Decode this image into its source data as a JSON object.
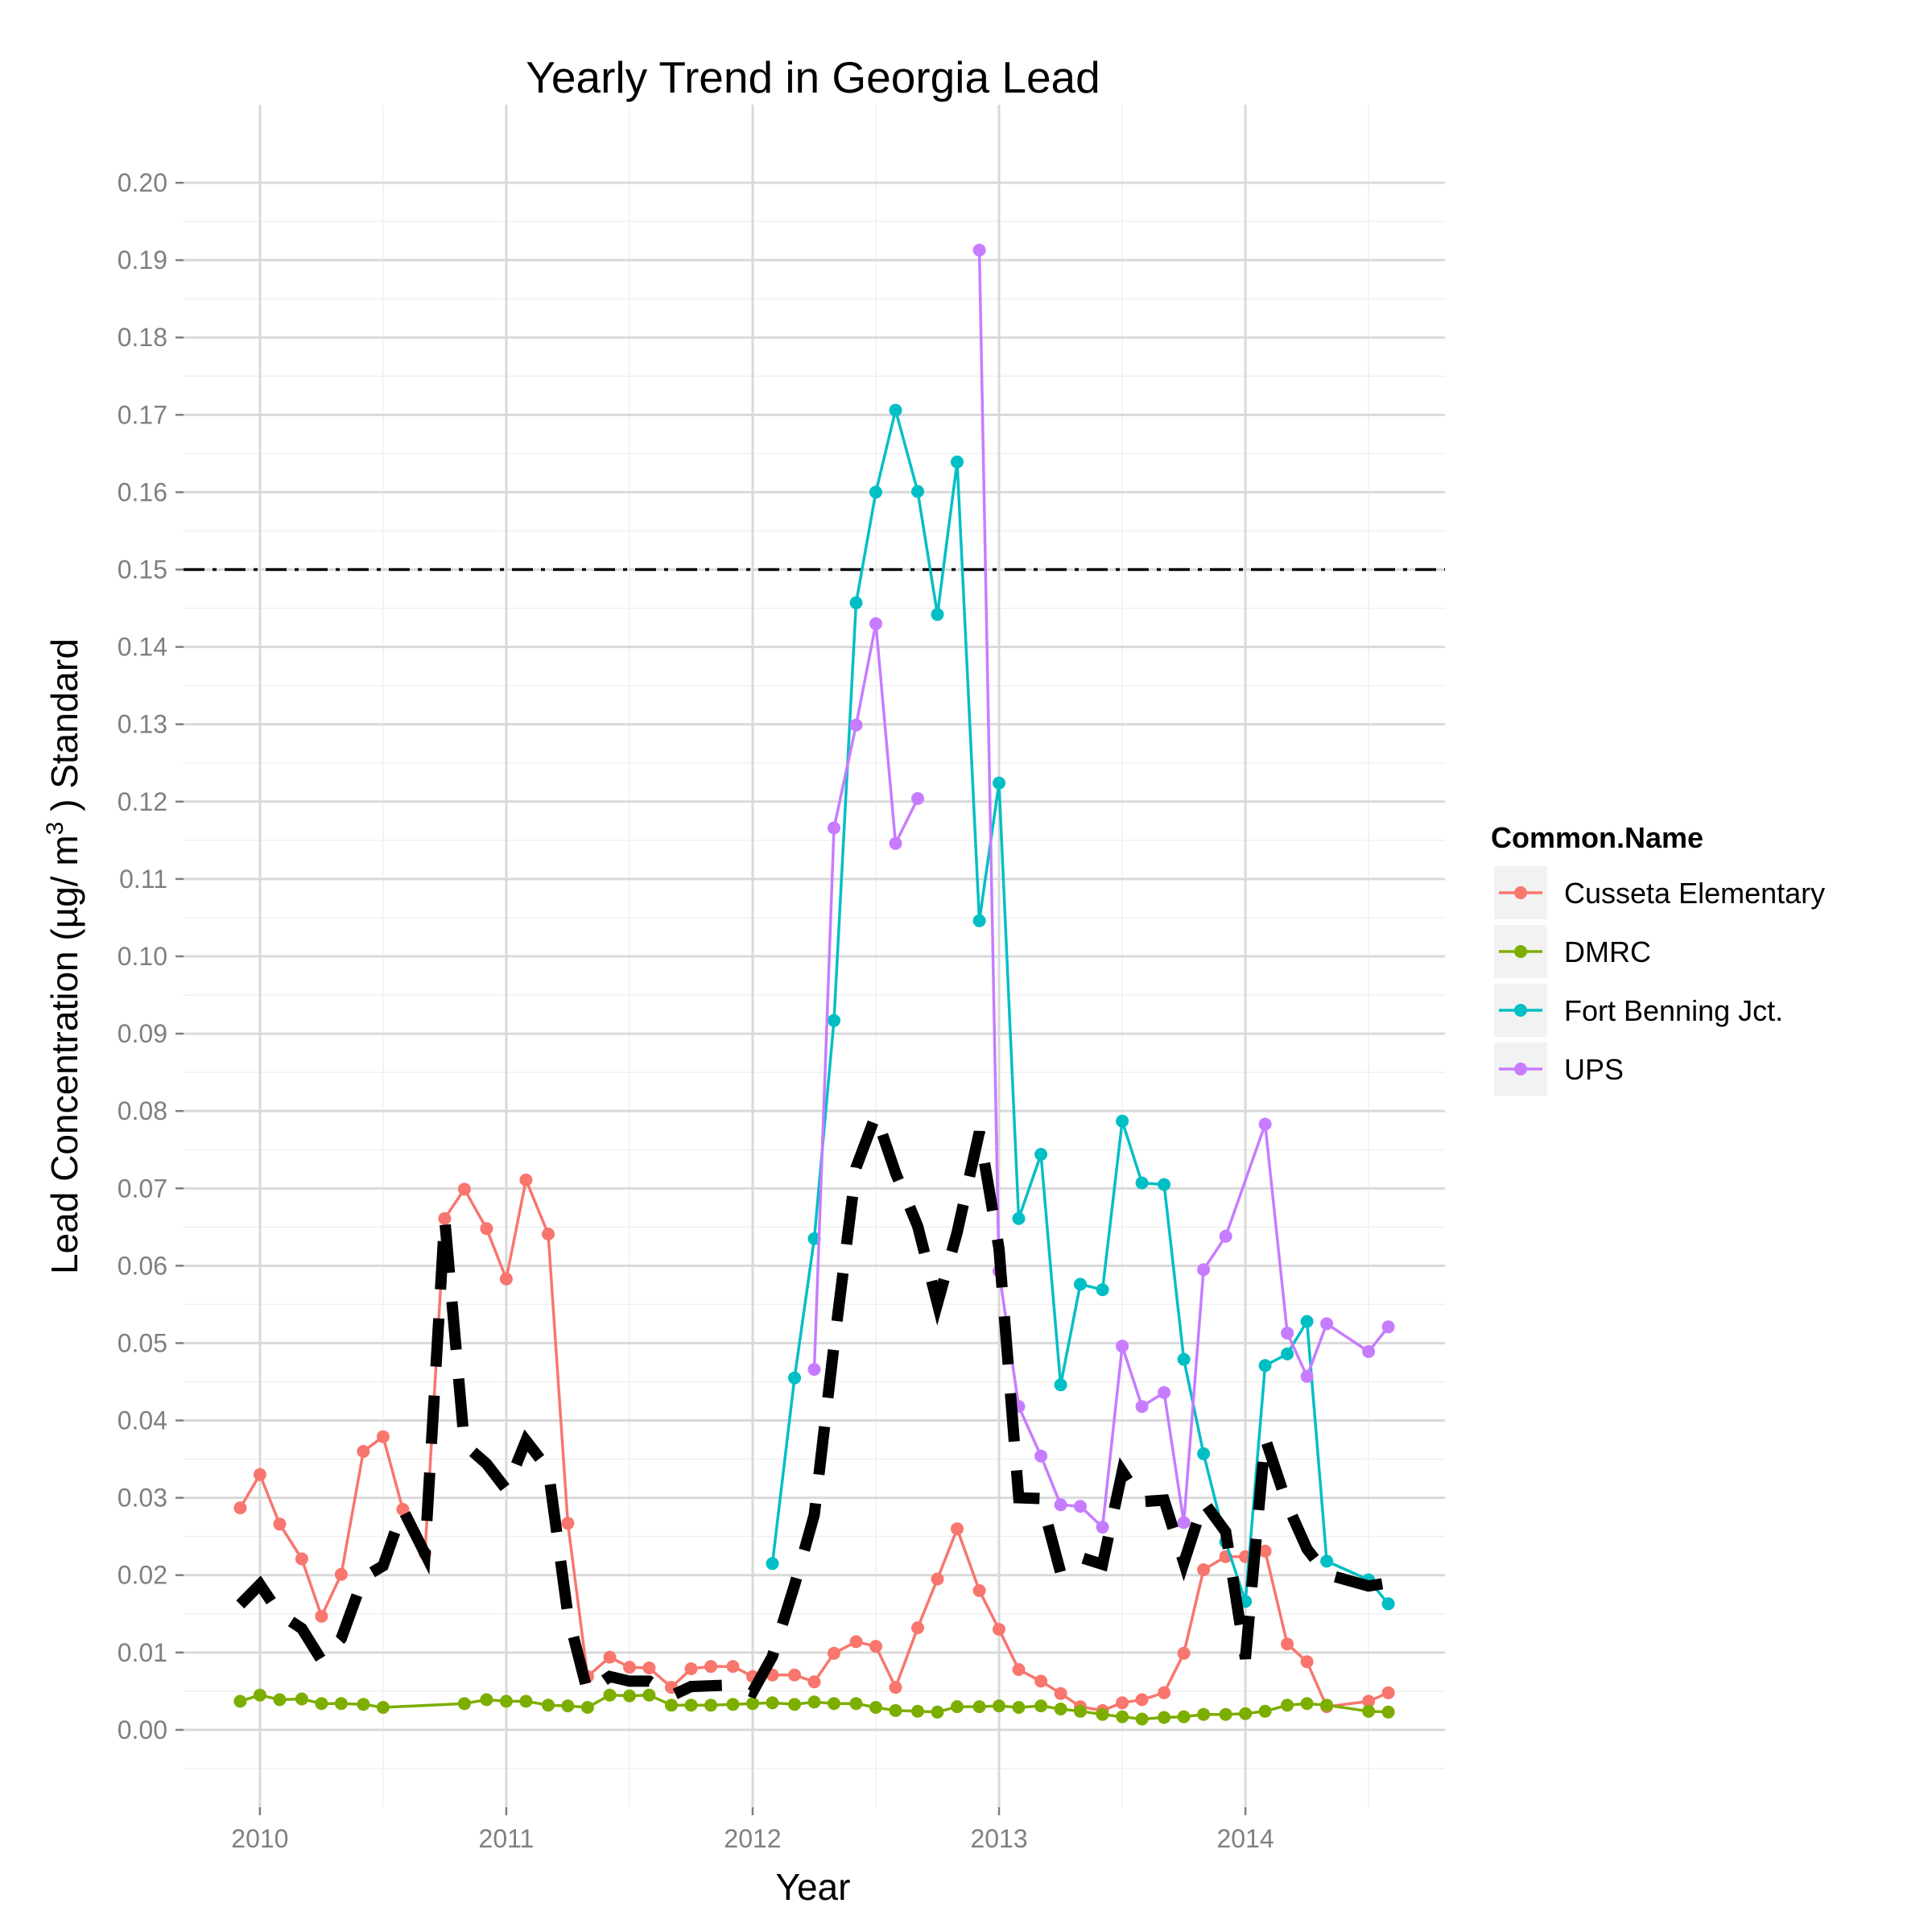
{
  "chart_data": {
    "type": "line",
    "title": "Yearly Trend in Georgia Lead",
    "xlabel": "Year",
    "ylabel": {
      "pre": "Lead Concentration (µg/ m",
      "sup": "3",
      "post": " ) Standard"
    },
    "xlim": [
      2009.69,
      2014.81
    ],
    "ylim": [
      -0.01,
      0.2101
    ],
    "x_ticks": [
      2010,
      2011,
      2012,
      2013,
      2014
    ],
    "x_tick_labels": [
      "2010",
      "2011",
      "2012",
      "2013",
      "2014"
    ],
    "y_ticks": [
      0.0,
      0.01,
      0.02,
      0.03,
      0.04,
      0.05,
      0.06,
      0.07,
      0.08,
      0.09,
      0.1,
      0.11,
      0.12,
      0.13,
      0.14,
      0.15,
      0.16,
      0.17,
      0.18,
      0.19,
      0.2
    ],
    "y_tick_labels": [
      "0.00",
      "0.01",
      "0.02",
      "0.03",
      "0.04",
      "0.05",
      "0.06",
      "0.07",
      "0.08",
      "0.09",
      "0.10",
      "0.11",
      "0.12",
      "0.13",
      "0.14",
      "0.15",
      "0.16",
      "0.17",
      "0.18",
      "0.19",
      "0.20"
    ],
    "grid": true,
    "reference_line": {
      "y": 0.15,
      "style": "dash-dot",
      "color": "#000000"
    },
    "legend": {
      "title": "Common.Name",
      "placement": "right"
    },
    "series": [
      {
        "name": "Cusseta Elementary",
        "color": "#F8766D",
        "x": [
          2009.92,
          2010.0,
          2010.08,
          2010.17,
          2010.25,
          2010.33,
          2010.42,
          2010.5,
          2010.58,
          2010.67,
          2010.75,
          2010.83,
          2010.92,
          2011.0,
          2011.08,
          2011.17,
          2011.25,
          2011.33,
          2011.42,
          2011.5,
          2011.58,
          2011.67,
          2011.75,
          2011.83,
          2011.92,
          2012.0,
          2012.08,
          2012.17,
          2012.25,
          2012.33,
          2012.42,
          2012.5,
          2012.58,
          2012.67,
          2012.75,
          2012.83,
          2012.92,
          2013.0,
          2013.08,
          2013.17,
          2013.25,
          2013.33,
          2013.42,
          2013.5,
          2013.58,
          2013.67,
          2013.75,
          2013.83,
          2013.92,
          2014.0,
          2014.08,
          2014.17,
          2014.25,
          2014.33,
          2014.5,
          2014.58
        ],
        "values": [
          0.0287,
          0.033,
          0.0266,
          0.0221,
          0.0147,
          0.0201,
          0.036,
          0.0379,
          0.0285,
          0.0228,
          0.0661,
          0.0699,
          0.0648,
          0.0583,
          0.0711,
          0.0641,
          0.0267,
          0.0069,
          0.0094,
          0.0081,
          0.008,
          0.0055,
          0.0079,
          0.0082,
          0.0082,
          0.0069,
          0.0071,
          0.0071,
          0.0062,
          0.0099,
          0.0114,
          0.0108,
          0.0055,
          0.0132,
          0.0195,
          0.026,
          0.018,
          0.013,
          0.0078,
          0.0063,
          0.0047,
          0.003,
          0.0025,
          0.0035,
          0.0039,
          0.0048,
          0.0099,
          0.0207,
          0.0224,
          0.0224,
          0.0231,
          0.0111,
          0.0088,
          0.003,
          0.0037,
          0.0048
        ]
      },
      {
        "name": "DMRC",
        "color": "#7CAE00",
        "x": [
          2009.92,
          2010.0,
          2010.08,
          2010.17,
          2010.25,
          2010.33,
          2010.42,
          2010.5,
          2010.83,
          2010.92,
          2011.0,
          2011.08,
          2011.17,
          2011.25,
          2011.33,
          2011.42,
          2011.5,
          2011.58,
          2011.67,
          2011.75,
          2011.83,
          2011.92,
          2012.0,
          2012.08,
          2012.17,
          2012.25,
          2012.33,
          2012.42,
          2012.5,
          2012.58,
          2012.67,
          2012.75,
          2012.83,
          2012.92,
          2013.0,
          2013.08,
          2013.17,
          2013.25,
          2013.33,
          2013.42,
          2013.5,
          2013.58,
          2013.67,
          2013.75,
          2013.83,
          2013.92,
          2014.0,
          2014.08,
          2014.17,
          2014.25,
          2014.33,
          2014.5,
          2014.58
        ],
        "values": [
          0.0037,
          0.0045,
          0.0039,
          0.004,
          0.0034,
          0.0034,
          0.0033,
          0.0029,
          0.0034,
          0.0039,
          0.0037,
          0.0037,
          0.0032,
          0.0031,
          0.0029,
          0.0045,
          0.0044,
          0.0045,
          0.0032,
          0.0032,
          0.0032,
          0.0033,
          0.0034,
          0.0035,
          0.0033,
          0.0036,
          0.0034,
          0.0034,
          0.0029,
          0.0025,
          0.0024,
          0.0023,
          0.003,
          0.003,
          0.0031,
          0.0029,
          0.0031,
          0.0027,
          0.0024,
          0.002,
          0.0017,
          0.0014,
          0.0016,
          0.0017,
          0.002,
          0.002,
          0.0021,
          0.0024,
          0.0032,
          0.0034,
          0.0032,
          0.0024,
          0.0023
        ]
      },
      {
        "name": "Fort Benning Jct.",
        "color": "#00BFC4",
        "x": [
          2012.08,
          2012.17,
          2012.25,
          2012.33,
          2012.42,
          2012.5,
          2012.58,
          2012.67,
          2012.75,
          2012.83,
          2012.92,
          2013.0,
          2013.08,
          2013.17,
          2013.25,
          2013.33,
          2013.42,
          2013.5,
          2013.58,
          2013.67,
          2013.75,
          2013.83,
          2013.92,
          2014.0,
          2014.08,
          2014.17,
          2014.25,
          2014.33,
          2014.5,
          2014.58
        ],
        "values": [
          0.0215,
          0.0455,
          0.0635,
          0.0917,
          0.1457,
          0.16,
          0.1706,
          0.1601,
          0.1442,
          0.1639,
          0.1046,
          0.1224,
          0.0661,
          0.0744,
          0.0446,
          0.0576,
          0.0569,
          0.0787,
          0.0707,
          0.0705,
          0.0479,
          0.0357,
          0.0243,
          0.0166,
          0.0471,
          0.0486,
          0.0528,
          0.0218,
          0.0194,
          0.0163
        ]
      },
      {
        "name": "UPS",
        "color": "#C77CFF",
        "x": [
          2012.25,
          2012.33,
          2012.42,
          2012.5,
          2012.58,
          2012.67,
          null,
          2012.92,
          2013.0,
          2013.08,
          2013.17,
          2013.25,
          2013.33,
          2013.42,
          2013.5,
          2013.58,
          2013.67,
          2013.75,
          2013.83,
          2013.92,
          2014.08,
          2014.17,
          2014.25,
          2014.33,
          2014.5,
          2014.58
        ],
        "values": [
          0.0466,
          0.1166,
          0.1299,
          0.143,
          0.1146,
          0.1204,
          null,
          0.1913,
          0.0593,
          0.0418,
          0.0354,
          0.0291,
          0.0289,
          0.0262,
          0.0496,
          0.0418,
          0.0436,
          0.0268,
          0.0595,
          0.0638,
          0.0783,
          0.0513,
          0.0457,
          0.0525,
          0.0489,
          0.0521
        ]
      },
      {
        "name": "",
        "color": "#000000",
        "style": "dashed",
        "x": [
          2009.92,
          2010.0,
          2010.08,
          2010.17,
          2010.25,
          2010.33,
          2010.42,
          2010.5,
          2010.58,
          2010.67,
          2010.75,
          2010.83,
          2010.92,
          2011.0,
          2011.08,
          2011.17,
          2011.25,
          2011.33,
          2011.42,
          2011.5,
          2011.58,
          2011.67,
          2011.75,
          2011.83,
          2011.92,
          2012.0,
          2012.08,
          2012.17,
          2012.25,
          2012.33,
          2012.42,
          2012.5,
          2012.58,
          2012.67,
          2012.75,
          2012.83,
          2012.92,
          2013.0,
          2013.08,
          2013.17,
          2013.25,
          2013.33,
          2013.42,
          2013.5,
          2013.58,
          2013.67,
          2013.75,
          2013.83,
          2013.92,
          2014.0,
          2014.08,
          2014.17,
          2014.25,
          2014.33,
          2014.5,
          2014.58
        ],
        "values": [
          0.0162,
          0.0188,
          0.015,
          0.0131,
          0.009,
          0.0118,
          0.0197,
          0.0212,
          0.0285,
          0.0228,
          0.0661,
          0.0369,
          0.0344,
          0.0311,
          0.0374,
          0.0337,
          0.0149,
          0.0049,
          0.0069,
          0.0063,
          0.0063,
          0.0044,
          0.0056,
          0.0057,
          0.0058,
          0.0049,
          0.0095,
          0.0187,
          0.0278,
          0.0497,
          0.0727,
          0.0795,
          0.072,
          0.0651,
          0.0551,
          0.0643,
          0.0773,
          0.0622,
          0.03,
          0.0299,
          0.0203,
          0.0223,
          0.0214,
          0.0334,
          0.0295,
          0.0297,
          0.0216,
          0.0295,
          0.0256,
          0.0092,
          0.0377,
          0.0291,
          0.0234,
          0.0201,
          0.0186,
          0.019
        ]
      }
    ]
  }
}
